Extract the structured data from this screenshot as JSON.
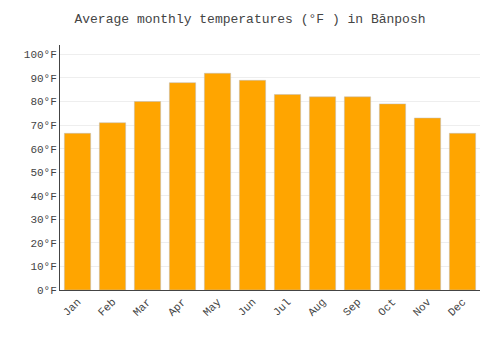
{
  "chart_data": {
    "type": "bar",
    "title": "Average monthly temperatures (°F ) in Bānposh",
    "categories": [
      "Jan",
      "Feb",
      "Mar",
      "Apr",
      "May",
      "Jun",
      "Jul",
      "Aug",
      "Sep",
      "Oct",
      "Nov",
      "Dec"
    ],
    "values": [
      66.5,
      71,
      80,
      88,
      92,
      89,
      83,
      82,
      82,
      79,
      73,
      66.5
    ],
    "color": "#FFA500",
    "ylim": [
      0,
      104
    ],
    "yticks": [
      {
        "value": 0,
        "label": "0°F"
      },
      {
        "value": 10,
        "label": "10°F"
      },
      {
        "value": 20,
        "label": "20°F"
      },
      {
        "value": 30,
        "label": "30°F"
      },
      {
        "value": 40,
        "label": "40°F"
      },
      {
        "value": 50,
        "label": "50°F"
      },
      {
        "value": 60,
        "label": "60°F"
      },
      {
        "value": 70,
        "label": "70°F"
      },
      {
        "value": 80,
        "label": "80°F"
      },
      {
        "value": 90,
        "label": "90°F"
      },
      {
        "value": 100,
        "label": "100°F"
      }
    ],
    "grid": true
  }
}
